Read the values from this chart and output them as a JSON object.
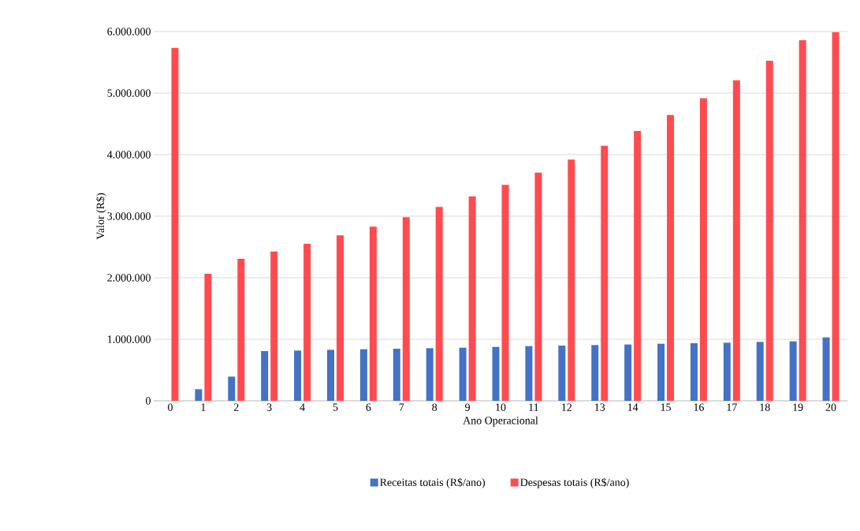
{
  "chart_data": {
    "type": "bar",
    "xlabel": "Ano Operacional",
    "ylabel": "Valor (R$)",
    "categories": [
      "0",
      "1",
      "2",
      "3",
      "4",
      "5",
      "6",
      "7",
      "8",
      "9",
      "10",
      "11",
      "12",
      "13",
      "14",
      "15",
      "16",
      "17",
      "18",
      "19",
      "20"
    ],
    "series": [
      {
        "name": "Receitas totais (R$/ano)",
        "color": "#4472c4",
        "values": [
          0,
          188000,
          393000,
          808000,
          816000,
          829000,
          838000,
          846000,
          855000,
          863000,
          876000,
          889000,
          897000,
          906000,
          915000,
          927000,
          936000,
          944000,
          957000,
          966000,
          1030000
        ]
      },
      {
        "name": "Despesas totais (R$/ano)",
        "color": "#ff4b4f",
        "values": [
          5735000,
          2064000,
          2308000,
          2427000,
          2551000,
          2688000,
          2829000,
          2983000,
          3150000,
          3321000,
          3509000,
          3709000,
          3919000,
          4145000,
          4385000,
          4645000,
          4915000,
          5209000,
          5526000,
          5859000,
          5990000
        ]
      }
    ],
    "ylim": [
      0,
      6000000
    ],
    "yticks": [
      0,
      {
        "value": 1000000,
        "label": "1.000.000"
      },
      {
        "value": 2000000,
        "label": "2.000.000"
      },
      {
        "value": 3000000,
        "label": "3.000.000"
      },
      {
        "value": 4000000,
        "label": "4.000.000"
      },
      {
        "value": 5000000,
        "label": "5.000.000"
      },
      {
        "value": 6000000,
        "label": "6.000.000"
      }
    ],
    "grid": "y",
    "legend": "bottom"
  }
}
